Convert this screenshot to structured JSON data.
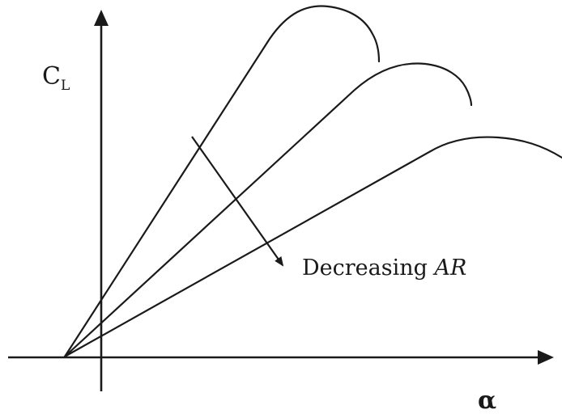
{
  "y_axis_label": {
    "main": "C",
    "subscript": "L"
  },
  "x_axis_label": "α",
  "annotation": {
    "prefix": "Decreasing ",
    "emphasis": "AR"
  },
  "curve_count": 3
}
